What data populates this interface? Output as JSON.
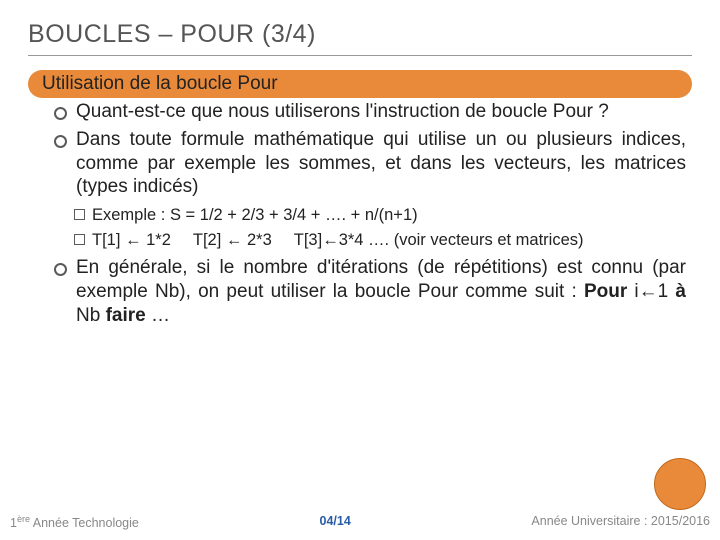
{
  "title": {
    "part1": "B",
    "part2": "OUCLES",
    "dash": " – ",
    "part3": "P",
    "part4": "OUR",
    "suffix": " (3/4)"
  },
  "section_header": "Utilisation de la boucle Pour",
  "bullets": {
    "b1": "Quant-est-ce que nous utiliserons l'instruction de boucle Pour ?",
    "b2": "Dans toute formule mathématique qui utilise un ou plusieurs indices, comme par exemple les sommes, et dans les vecteurs, les matrices (types indicés)",
    "sub1_label": "Exemple : ",
    "sub1_rest": "S = 1/2 + 2/3 + 3/4 + …. + n/(n+1)",
    "sub2_a": "T[1] ",
    "sub2_b": " 1*2",
    "sub2_c": "T[2] ",
    "sub2_d": " 2*3",
    "sub2_e": "T[3]",
    "sub2_f": "3*4",
    "sub2_tail": " …. (voir vecteurs et matrices)",
    "b3_pre": "En générale, si le nombre d'itérations (de répétitions) est connu (par exemple Nb), on peut utiliser la boucle Pour comme suit : ",
    "b3_kw1": "Pour",
    "b3_mid1": " i",
    "b3_arrow": "←",
    "b3_mid2": "1 ",
    "b3_kw2": "à",
    "b3_mid3": " Nb ",
    "b3_kw3": "faire",
    "b3_end": " …"
  },
  "arrow_glyph": "←",
  "footer": {
    "left_sup": "1ère",
    "left_rest": " Année Technologie",
    "center": "04/14",
    "right": "Année Universitaire : 2015/2016"
  },
  "colors": {
    "accent": "#e98a3a",
    "title_text": "#555555",
    "body_text": "#222222",
    "footer_text": "#888888",
    "footer_center": "#2a5da8"
  }
}
